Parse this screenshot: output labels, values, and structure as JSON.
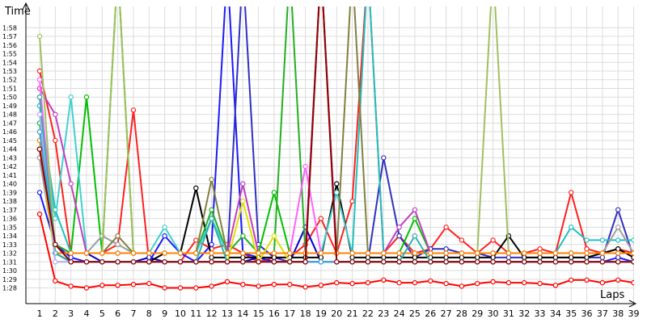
{
  "chart_data": {
    "type": "line",
    "xlabel": "Laps",
    "ylabel": "Time",
    "x": [
      1,
      2,
      3,
      4,
      5,
      6,
      7,
      8,
      9,
      10,
      11,
      12,
      13,
      14,
      15,
      16,
      17,
      18,
      19,
      20,
      21,
      22,
      23,
      24,
      25,
      26,
      27,
      28,
      29,
      30,
      31,
      32,
      33,
      34,
      35,
      36,
      37,
      38,
      39
    ],
    "x_tick_labels": [
      "1",
      "2",
      "3",
      "4",
      "5",
      "6",
      "7",
      "8",
      "9",
      "10",
      "11",
      "12",
      "13",
      "14",
      "15",
      "16",
      "17",
      "18",
      "19",
      "20",
      "21",
      "22",
      "23",
      "24",
      "25",
      "26",
      "27",
      "28",
      "29",
      "30",
      "31",
      "32",
      "33",
      "34",
      "35",
      "36",
      "37",
      "38",
      "39"
    ],
    "y_tick_values": [
      88,
      89,
      90,
      91,
      92,
      93,
      94,
      95,
      96,
      97,
      98,
      99,
      100,
      101,
      102,
      103,
      104,
      105,
      106,
      107,
      108,
      109,
      110,
      111,
      112,
      113,
      114,
      115,
      116,
      117,
      118
    ],
    "y_tick_labels": [
      "1:28",
      "1:29",
      "1:30",
      "1:31",
      "1:32",
      "1:33",
      "1:34",
      "1:35",
      "1:36",
      "1:37",
      "1:38",
      "1:39",
      "1:40",
      "1:41",
      "1:42",
      "1:43",
      "1:44",
      "1:45",
      "1:46",
      "1:47",
      "1:48",
      "1:49",
      "1:50",
      "1:51",
      "1:52",
      "1:53",
      "1:54",
      "1:55",
      "1:56",
      "1:57",
      "1:58"
    ],
    "ylim": [
      87,
      118.8
    ],
    "grid": true,
    "series": [
      {
        "color": "#ff0000",
        "values": [
          96.5,
          88.8,
          88.2,
          88.0,
          88.3,
          88.3,
          88.4,
          88.5,
          88.0,
          88.0,
          88.0,
          88.2,
          88.7,
          88.4,
          88.2,
          88.4,
          88.4,
          88.1,
          88.3,
          88.6,
          88.5,
          88.6,
          88.9,
          88.6,
          88.6,
          88.8,
          88.5,
          88.2,
          88.5,
          88.7,
          88.6,
          88.6,
          88.5,
          88.3,
          88.9,
          88.9,
          88.6,
          88.9,
          88.6
        ]
      },
      {
        "color": "#ff2020",
        "values": [
          113,
          105,
          92,
          92,
          92,
          93,
          108.5,
          91,
          91,
          91,
          93.5,
          92.5,
          93,
          92,
          91,
          91.5,
          91.5,
          93,
          96,
          92,
          98,
          125,
          92,
          94,
          92,
          92.5,
          95,
          93.5,
          92,
          93.5,
          92,
          92,
          92.5,
          92,
          99,
          92.5,
          92,
          92.5,
          92
        ]
      },
      {
        "color": "#0000d0",
        "values": [
          104,
          93,
          92,
          92,
          91,
          91,
          91,
          91.5,
          91,
          91,
          91,
          91,
          91,
          91,
          91.5,
          91,
          91,
          95,
          91,
          91,
          91,
          91,
          91,
          91,
          91,
          91,
          91,
          91,
          91,
          91,
          91,
          91,
          91,
          91,
          91,
          91,
          91,
          91,
          91
        ]
      },
      {
        "color": "#1a1aff",
        "values": [
          99,
          93,
          91.5,
          91,
          91,
          91,
          91,
          91,
          94,
          92,
          91,
          93,
          125,
          92,
          91.5,
          91,
          91,
          91,
          91,
          91,
          91,
          91,
          91,
          91,
          91,
          91,
          91,
          91,
          91,
          91,
          91,
          91,
          91,
          91,
          91,
          91,
          91,
          91.5,
          91
        ]
      },
      {
        "color": "#3030c0",
        "values": [
          103,
          92,
          91,
          91,
          91,
          91,
          91,
          91,
          91,
          91,
          91,
          91,
          91,
          125,
          93,
          91.5,
          91,
          91,
          91,
          91,
          91,
          91,
          103,
          94,
          91.5,
          92.5,
          92.5,
          92,
          92,
          91.5,
          91.5,
          91.5,
          91.5,
          91.5,
          91.5,
          91.5,
          91.5,
          97,
          91.5
        ]
      },
      {
        "color": "#000000",
        "values": [
          104,
          92,
          91,
          91,
          91,
          91,
          91,
          91,
          92,
          92,
          99.5,
          91.5,
          91.5,
          91.5,
          91.5,
          91.5,
          91.5,
          91.5,
          91.5,
          100,
          91.5,
          91.5,
          91.5,
          91.5,
          91.5,
          91.5,
          91.5,
          91.5,
          91.5,
          91.5,
          94,
          91.5,
          91.5,
          91.5,
          91.5,
          91.5,
          92,
          92.5,
          91.5
        ]
      },
      {
        "color": "#00c000",
        "values": [
          107,
          92,
          92,
          110,
          92,
          92,
          92,
          92,
          92,
          92,
          92,
          92,
          92,
          92,
          92,
          99,
          92,
          92,
          125,
          92,
          92,
          92,
          92,
          92,
          96,
          92,
          92,
          92,
          92,
          92,
          92,
          92,
          92,
          92,
          92,
          92,
          92,
          92,
          92
        ]
      },
      {
        "color": "#20b020",
        "values": [
          110,
          93,
          92,
          92,
          92,
          125,
          92,
          92,
          92,
          92,
          92,
          97,
          92,
          94,
          92,
          92,
          125,
          92,
          92,
          92,
          92,
          92,
          92,
          92,
          92,
          92,
          92,
          92,
          92,
          92,
          92,
          92,
          92,
          92,
          92,
          92,
          92,
          92,
          92
        ]
      },
      {
        "color": "#40d0d0",
        "values": [
          109,
          96,
          110,
          92,
          94,
          93,
          92,
          92,
          95,
          92,
          92,
          96,
          92,
          92,
          92,
          92,
          92,
          92,
          92,
          99,
          92,
          92,
          92,
          92,
          92,
          92,
          92,
          92,
          92,
          92,
          92,
          92,
          92,
          92,
          92,
          92,
          92,
          92,
          92
        ]
      },
      {
        "color": "#20c0c0",
        "values": [
          109,
          97,
          92,
          92,
          92,
          92,
          92,
          92,
          92,
          92,
          92,
          92,
          92,
          92,
          92,
          92,
          92,
          92,
          92,
          92,
          92,
          125,
          92,
          92,
          92,
          92,
          92,
          92,
          92,
          92,
          92,
          92,
          92,
          92,
          95,
          93.5,
          93.5,
          93.5,
          93.5
        ]
      },
      {
        "color": "#c040c0",
        "values": [
          111,
          108,
          100,
          92,
          92,
          92,
          92,
          92,
          92,
          92,
          92,
          92,
          92,
          100,
          92,
          92,
          92,
          92,
          125,
          92,
          92,
          92,
          92,
          95,
          97,
          92,
          92,
          92,
          92,
          92,
          92,
          92,
          92,
          92,
          92,
          92,
          92,
          92,
          92
        ]
      },
      {
        "color": "#ff60ff",
        "values": [
          112,
          92,
          92,
          92,
          92,
          92,
          92,
          92,
          92,
          92,
          92,
          92,
          92,
          92,
          92,
          92,
          92,
          102,
          92,
          92,
          92,
          92,
          92,
          92,
          92,
          92,
          92,
          92,
          92,
          92,
          92,
          92,
          92,
          92,
          92,
          92,
          92,
          92,
          92
        ]
      },
      {
        "color": "#a0a0a0",
        "values": [
          103,
          92,
          92,
          92,
          94,
          93,
          92,
          92,
          92,
          92,
          92,
          92,
          92,
          92,
          92,
          92,
          92,
          92,
          92,
          92,
          92,
          92,
          92,
          92,
          92,
          92,
          92,
          92,
          92,
          92,
          92,
          92,
          92,
          92,
          92,
          92,
          92,
          95,
          92
        ]
      },
      {
        "color": "#808040",
        "values": [
          106,
          92,
          92,
          92,
          92,
          94,
          92,
          92,
          92,
          92,
          92,
          100.5,
          92,
          92,
          92,
          92,
          92,
          92,
          92,
          92,
          125,
          92,
          92,
          92,
          92,
          92,
          92,
          92,
          92,
          92,
          92,
          92,
          92,
          92,
          92,
          92,
          92,
          92,
          92
        ]
      },
      {
        "color": "#a0c060",
        "values": [
          117,
          92,
          92,
          92,
          92,
          125,
          92,
          92,
          92,
          92,
          92,
          92,
          92,
          92,
          92,
          92,
          92,
          92,
          92,
          92,
          92,
          92,
          92,
          92,
          92,
          92,
          92,
          92,
          92,
          125,
          92,
          92,
          92,
          92,
          92,
          92,
          92,
          92,
          92
        ]
      },
      {
        "color": "#e0e000",
        "values": [
          105,
          91,
          91,
          91,
          91,
          91,
          91,
          91,
          91,
          91,
          91,
          91,
          91,
          98,
          91,
          94,
          91,
          91,
          91,
          91,
          91,
          91,
          91,
          91,
          91,
          91,
          91,
          91,
          91,
          91,
          91,
          91,
          91,
          91,
          91,
          91,
          91,
          91,
          91
        ]
      },
      {
        "color": "#ff8000",
        "values": [
          105,
          92,
          92,
          92,
          92,
          92,
          92,
          92,
          92,
          92,
          92,
          92,
          92,
          92,
          92,
          92,
          92,
          92,
          92,
          92,
          92,
          92,
          92,
          92,
          92,
          92,
          92,
          92,
          92,
          92,
          92,
          92,
          92,
          92,
          92,
          92,
          92,
          92,
          92
        ]
      },
      {
        "color": "#30b0b0",
        "values": [
          110,
          92,
          91,
          91,
          91,
          91,
          91,
          91,
          91,
          91,
          91,
          96,
          91,
          91,
          91,
          91,
          91,
          91,
          91,
          91,
          91,
          91,
          91,
          91,
          94,
          91,
          91,
          91,
          91,
          91,
          91,
          91,
          91,
          91,
          91,
          91,
          91,
          91,
          91
        ]
      },
      {
        "color": "#b0b0ff",
        "values": [
          108,
          91,
          91,
          91,
          91,
          91,
          91,
          91,
          91,
          91,
          91,
          91,
          91,
          91,
          91,
          91,
          91,
          91,
          91,
          91,
          91,
          91,
          91,
          91,
          91,
          91,
          91,
          91,
          91,
          91,
          91,
          91,
          91,
          91,
          91,
          91,
          91,
          91,
          91
        ]
      },
      {
        "color": "#40a0e0",
        "values": [
          106,
          93,
          91,
          91,
          91,
          91,
          91,
          91,
          91,
          91,
          91,
          91,
          91,
          91,
          91,
          91,
          91,
          91,
          91,
          91,
          91,
          91,
          91,
          91,
          91,
          91,
          91,
          91,
          91,
          91,
          91,
          91,
          91,
          91,
          91,
          91,
          91,
          91,
          91
        ]
      },
      {
        "color": "#900000",
        "values": [
          104,
          93,
          91,
          91,
          91,
          91,
          91,
          91,
          91,
          91,
          91,
          91,
          91,
          91,
          91,
          91,
          91,
          91,
          125,
          91,
          91,
          91,
          91,
          91,
          91,
          91,
          91,
          91,
          91,
          91,
          91,
          91,
          91,
          91,
          91,
          91,
          91,
          91,
          91
        ]
      }
    ]
  }
}
